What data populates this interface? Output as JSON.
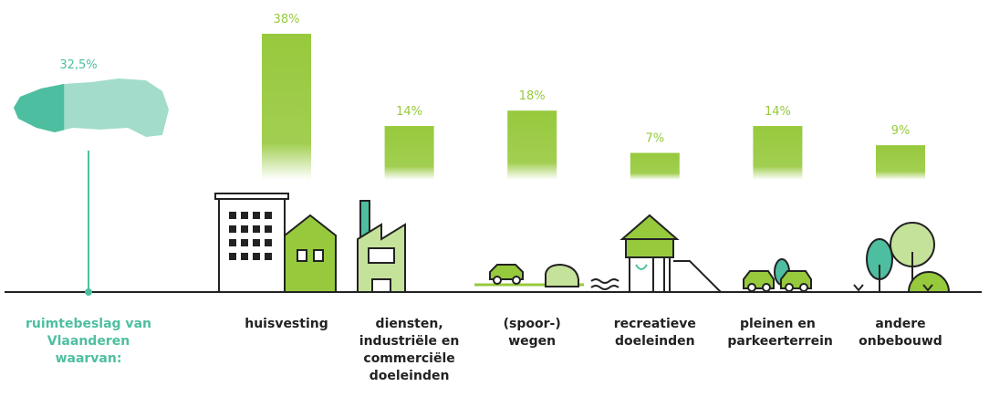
{
  "chart_data": {
    "type": "bar",
    "total": {
      "label": "ruimtebeslag van Vlaanderen waarvan:",
      "value": 32.5,
      "value_label": "32,5%"
    },
    "categories": [
      "huisvesting",
      "diensten, industriële en commerciële doeleinden",
      "(spoor-) wegen",
      "recreatieve doeleinden",
      "pleinen en parkeerterrein",
      "andere onbebouwd"
    ],
    "values": [
      38,
      14,
      18,
      7,
      14,
      9
    ],
    "value_labels": [
      "38%",
      "14%",
      "18%",
      "7%",
      "14%",
      "9%"
    ],
    "color": "#97c93d",
    "ylim": [
      0,
      38
    ]
  }
}
